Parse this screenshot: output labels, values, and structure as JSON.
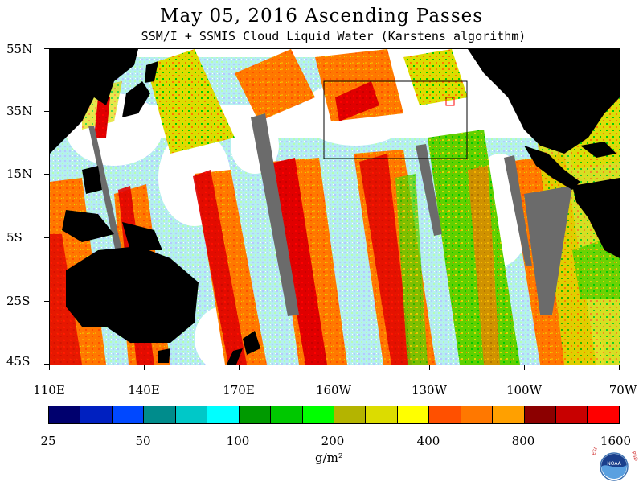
{
  "title": "May 05, 2016  Ascending Passes",
  "subtitle": "SSM/I + SSMIS Cloud Liquid Water (Karstens algorithm)",
  "map": {
    "lat_labels": [
      "55N",
      "35N",
      "15N",
      "5S",
      "25S",
      "45S"
    ],
    "lon_labels": [
      "110E",
      "140E",
      "170E",
      "160W",
      "130W",
      "100W",
      "70W"
    ],
    "colors": {
      "land": "#000000",
      "no_data": "#6b6b6b",
      "background": "#ffffff"
    }
  },
  "colorbar": {
    "colors": [
      "#00006e",
      "#0020c0",
      "#0048ff",
      "#008c8c",
      "#00c8c8",
      "#00ffff",
      "#009a00",
      "#00c800",
      "#00ff00",
      "#b4b400",
      "#dcdc00",
      "#ffff00",
      "#ff5000",
      "#ff7800",
      "#ffa000",
      "#8c0000",
      "#c80000",
      "#ff0000"
    ],
    "tick_labels": [
      "25",
      "50",
      "100",
      "200",
      "400",
      "800",
      "1600"
    ],
    "units": "g/m²"
  },
  "logo": {
    "text_left": "ESRL",
    "text_right": "PSD",
    "emblem": "NOAA"
  }
}
